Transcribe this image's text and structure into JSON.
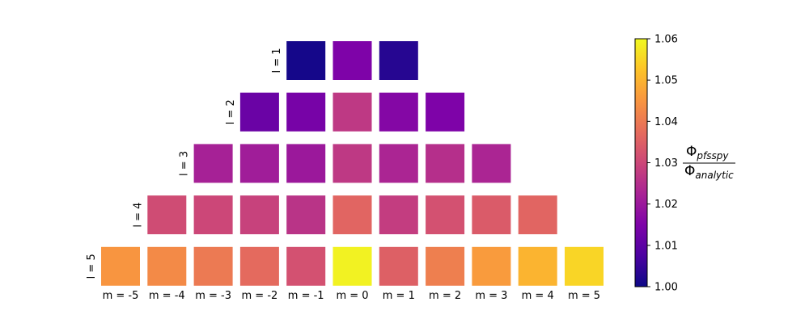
{
  "chart_data": {
    "type": "heatmap",
    "colormap": "plasma",
    "row_labels": [
      "l = 1",
      "l = 2",
      "l = 3",
      "l = 4",
      "l = 5"
    ],
    "column_labels": [
      "m = -5",
      "m = -4",
      "m = -3",
      "m = -2",
      "m = -1",
      "m = 0",
      "m = 1",
      "m = 2",
      "m = 3",
      "m = 4",
      "m = 5"
    ],
    "rows": [
      {
        "l": 1,
        "m": [
          -1,
          0,
          1
        ],
        "values": [
          1.001,
          1.015,
          1.003
        ]
      },
      {
        "l": 2,
        "m": [
          -2,
          -1,
          0,
          1,
          2
        ],
        "values": [
          1.012,
          1.014,
          1.027,
          1.016,
          1.015
        ]
      },
      {
        "l": 3,
        "m": [
          -3,
          -2,
          -1,
          0,
          1,
          2,
          3
        ],
        "values": [
          1.022,
          1.021,
          1.02,
          1.027,
          1.023,
          1.025,
          1.023
        ]
      },
      {
        "l": 4,
        "m": [
          -4,
          -3,
          -2,
          -1,
          0,
          1,
          2,
          3,
          4
        ],
        "values": [
          1.031,
          1.03,
          1.029,
          1.026,
          1.036,
          1.028,
          1.032,
          1.034,
          1.036
        ]
      },
      {
        "l": 5,
        "m": [
          -5,
          -4,
          -3,
          -2,
          -1,
          0,
          1,
          2,
          3,
          4,
          5
        ],
        "values": [
          1.045,
          1.043,
          1.04,
          1.037,
          1.032,
          1.059,
          1.035,
          1.041,
          1.046,
          1.05,
          1.055
        ]
      }
    ],
    "colorbar": {
      "range": [
        1.0,
        1.06
      ],
      "ticks": [
        "1.00",
        "1.01",
        "1.02",
        "1.03",
        "1.04",
        "1.05",
        "1.06"
      ],
      "label_numerator": "Φ",
      "label_numerator_sub": "pfsspy",
      "label_denominator": "Φ",
      "label_denominator_sub": "analytic"
    }
  }
}
